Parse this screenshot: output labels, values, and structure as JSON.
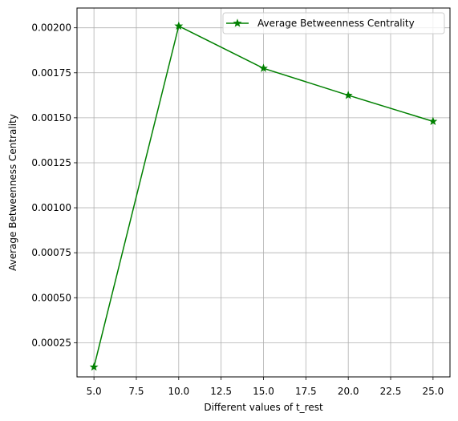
{
  "chart_data": {
    "type": "line",
    "xlabel": "Different values of t_rest",
    "ylabel": "Average Betweenness Centrality",
    "xlim": [
      4.0,
      26.0
    ],
    "ylim": [
      6e-05,
      0.00211
    ],
    "x_ticks": [
      5.0,
      7.5,
      10.0,
      12.5,
      15.0,
      17.5,
      20.0,
      22.5,
      25.0
    ],
    "x_tick_labels": [
      "5.0",
      "7.5",
      "10.0",
      "12.5",
      "15.0",
      "17.5",
      "20.0",
      "22.5",
      "25.0"
    ],
    "y_ticks": [
      0.00025,
      0.0005,
      0.00075,
      0.001,
      0.00125,
      0.0015,
      0.00175,
      0.002
    ],
    "y_tick_labels": [
      "0.00025",
      "0.00050",
      "0.00075",
      "0.00100",
      "0.00125",
      "0.00150",
      "0.00175",
      "0.00200"
    ],
    "grid": true,
    "legend_position": "top-right",
    "series": [
      {
        "name": "Average Betweenness Centrality",
        "color": "#008000",
        "marker": "star",
        "x": [
          5,
          10,
          15,
          20,
          25
        ],
        "y": [
          0.000115,
          0.00201,
          0.001775,
          0.001625,
          0.00148
        ]
      }
    ]
  }
}
